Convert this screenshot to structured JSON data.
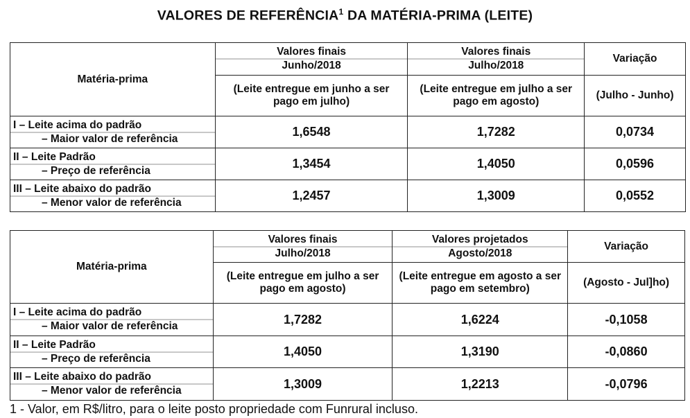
{
  "title": {
    "text": "VALORES DE REFERÊNCIA",
    "sup": "1",
    "suffix": " DA MATÉRIA-PRIMA (LEITE)"
  },
  "tables": [
    {
      "col1": "Matéria-prima",
      "col2": {
        "line1": "Valores finais",
        "line2": "Junho/2018",
        "desc": "(Leite entregue em junho a ser pago em julho)"
      },
      "col3": {
        "line1": "Valores finais",
        "line2": "Julho/2018",
        "desc": "(Leite entregue em julho a ser pago em agosto)"
      },
      "col4": {
        "line1": "Variação",
        "desc": "(Julho - Junho)"
      },
      "rows": [
        {
          "name": "I – Leite acima do padrão",
          "sub": "–  Maior valor de referência",
          "a": "1,6548",
          "b": "1,7282",
          "var": "0,0734"
        },
        {
          "name": "II – Leite Padrão",
          "sub": "–  Preço de referência",
          "a": "1,3454",
          "b": "1,4050",
          "var": "0,0596"
        },
        {
          "name": "III – Leite abaixo do padrão",
          "sub": "–  Menor valor de referência",
          "a": "1,2457",
          "b": "1,3009",
          "var": "0,0552"
        }
      ]
    },
    {
      "col1": "Matéria-prima",
      "col2": {
        "line1": "Valores finais",
        "line2": "Julho/2018",
        "desc": "(Leite entregue em julho a ser pago em agosto)"
      },
      "col3": {
        "line1": "Valores projetados",
        "line2": "Agosto/2018",
        "desc": "(Leite entregue em agosto a ser pago em setembro)"
      },
      "col4": {
        "line1": "Variação",
        "desc": "(Agosto - Jul]ho)"
      },
      "rows": [
        {
          "name": "I – Leite acima do padrão",
          "sub": "–  Maior valor de referência",
          "a": "1,7282",
          "b": "1,6224",
          "var": "-0,1058"
        },
        {
          "name": "II – Leite Padrão",
          "sub": "–  Preço de referência",
          "a": "1,4050",
          "b": "1,3190",
          "var": "-0,0860"
        },
        {
          "name": "III – Leite abaixo do padrão",
          "sub": "–  Menor valor de referência",
          "a": "1,3009",
          "b": "1,2213",
          "var": "-0,0796"
        }
      ]
    }
  ],
  "footnote": "1 - Valor, em R$/litro, para o leite posto propriedade com Funrural incluso."
}
